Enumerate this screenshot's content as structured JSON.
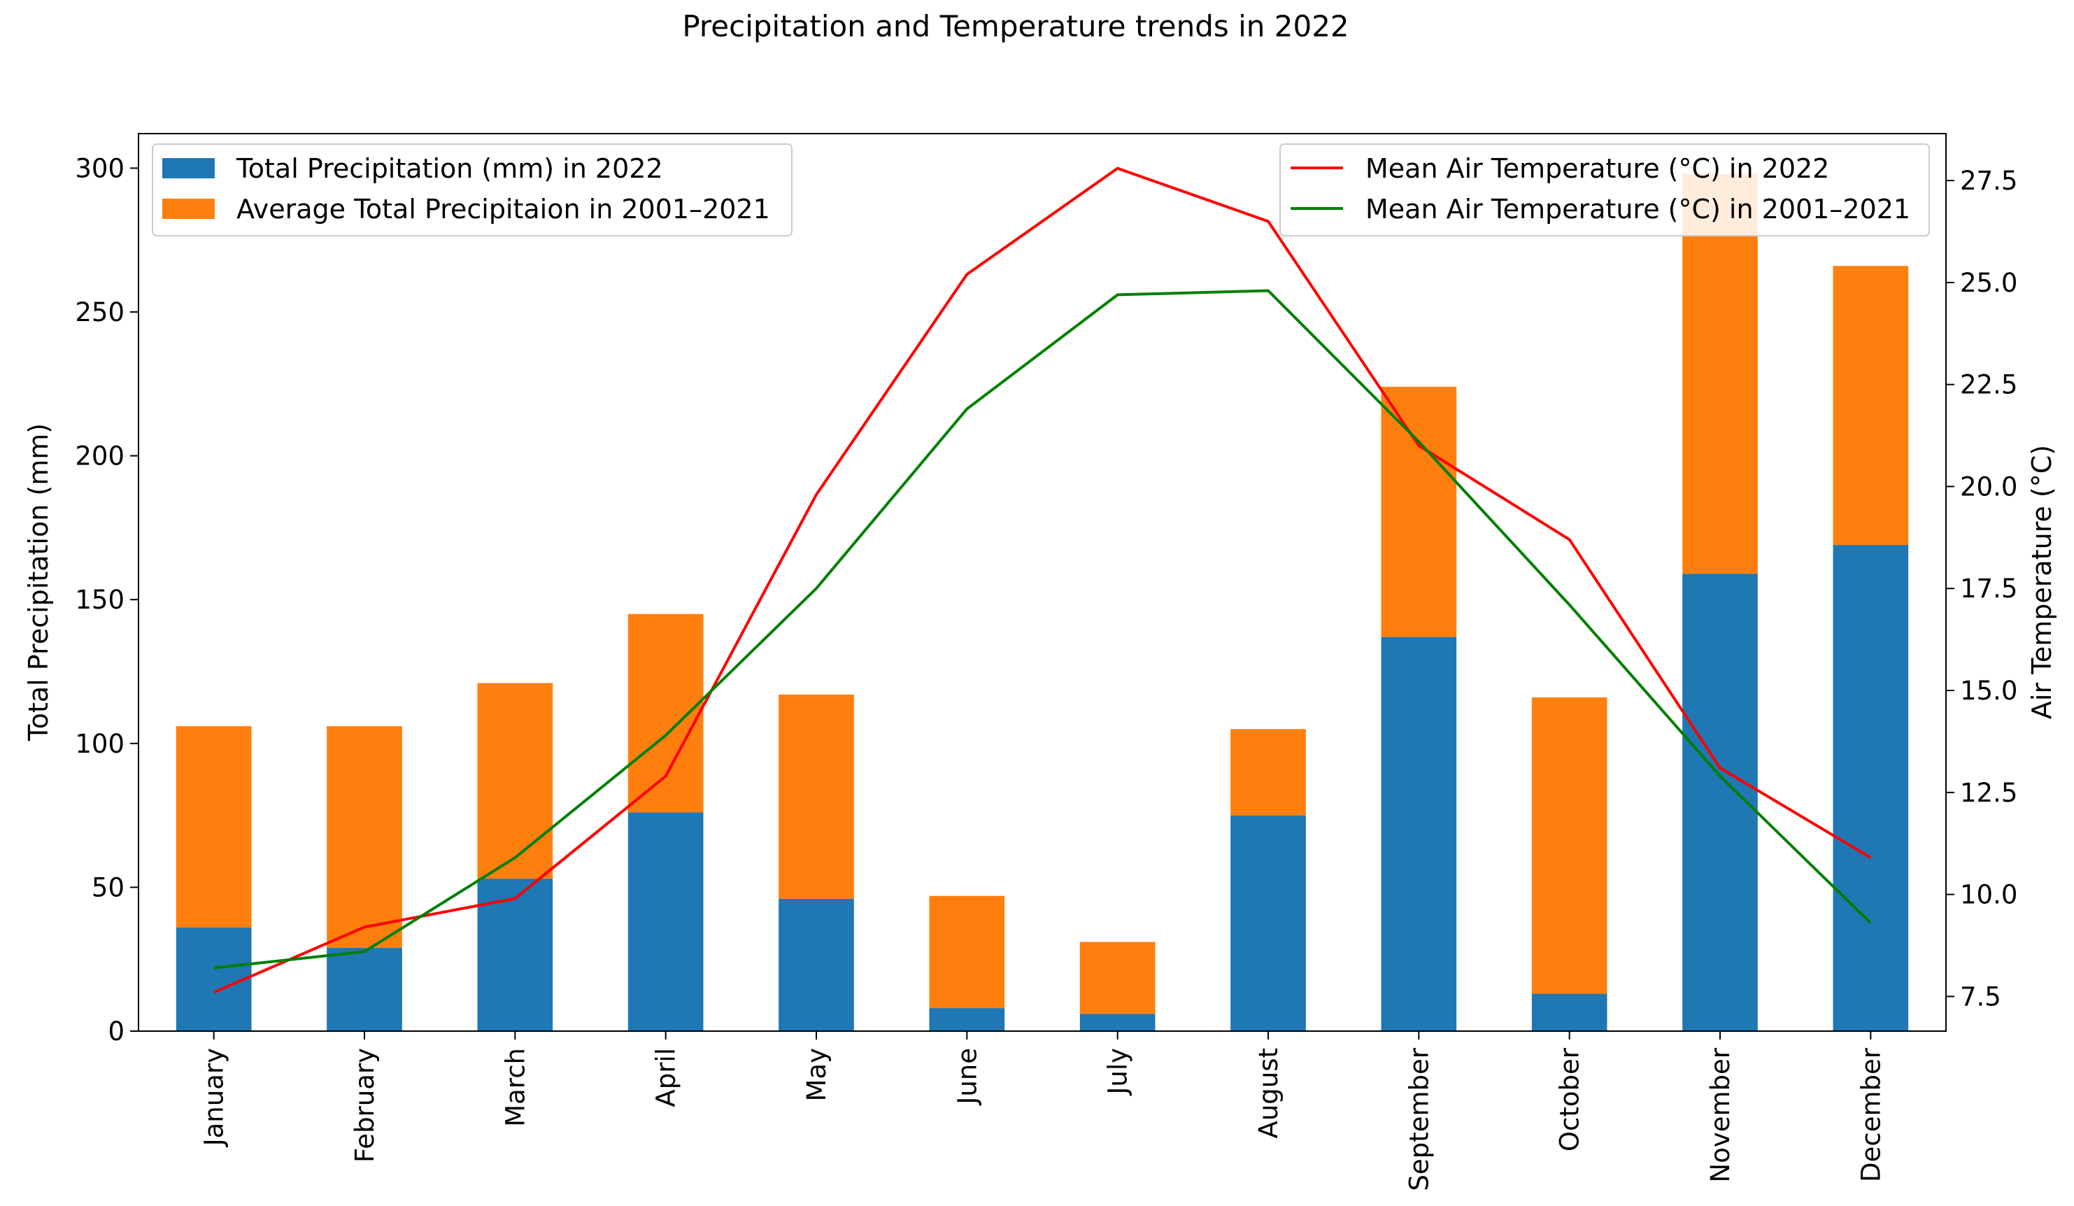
{
  "chart_data": {
    "type": "bar",
    "title": "Precipitation and Temperature trends in 2022",
    "xlabel": "",
    "ylabel": "Total Precipitation (mm)",
    "y2label": "Air Temperature (°C)",
    "ylim": [
      0,
      312
    ],
    "y2lim": [
      6.65,
      28.65
    ],
    "yticks": [
      0,
      50,
      100,
      150,
      200,
      250,
      300
    ],
    "y2ticks": [
      "7.5",
      "10.0",
      "12.5",
      "15.0",
      "17.5",
      "20.0",
      "22.5",
      "25.0",
      "27.5"
    ],
    "categories": [
      "January",
      "February",
      "March",
      "April",
      "May",
      "June",
      "July",
      "August",
      "September",
      "October",
      "November",
      "December"
    ],
    "bar_series": [
      {
        "name": "Total Precipitation (mm) in 2022",
        "color": "#1f77b4",
        "values": [
          36,
          29,
          53,
          76,
          46,
          8,
          6,
          75,
          137,
          13,
          159,
          169
        ]
      },
      {
        "name": "Average Total Precipitaion in 2001–2021",
        "color": "#ff7f0e",
        "values": [
          70,
          77,
          68,
          69,
          71,
          39,
          25,
          30,
          87,
          103,
          139,
          97
        ]
      }
    ],
    "line_series": [
      {
        "name": "Mean Air Temperature (°C) in 2022",
        "color": "#ff0000",
        "values": [
          7.6,
          9.2,
          9.9,
          12.9,
          19.8,
          25.2,
          27.8,
          26.5,
          21.0,
          18.7,
          13.1,
          10.9
        ]
      },
      {
        "name": "Mean Air Temperature (°C) in 2001–2021",
        "color": "#008000",
        "values": [
          8.2,
          8.6,
          10.9,
          13.9,
          17.5,
          21.9,
          24.7,
          24.8,
          21.1,
          17.1,
          12.9,
          9.3
        ]
      }
    ],
    "legend_left": "top-left",
    "legend_right": "top-right",
    "grid": false
  }
}
